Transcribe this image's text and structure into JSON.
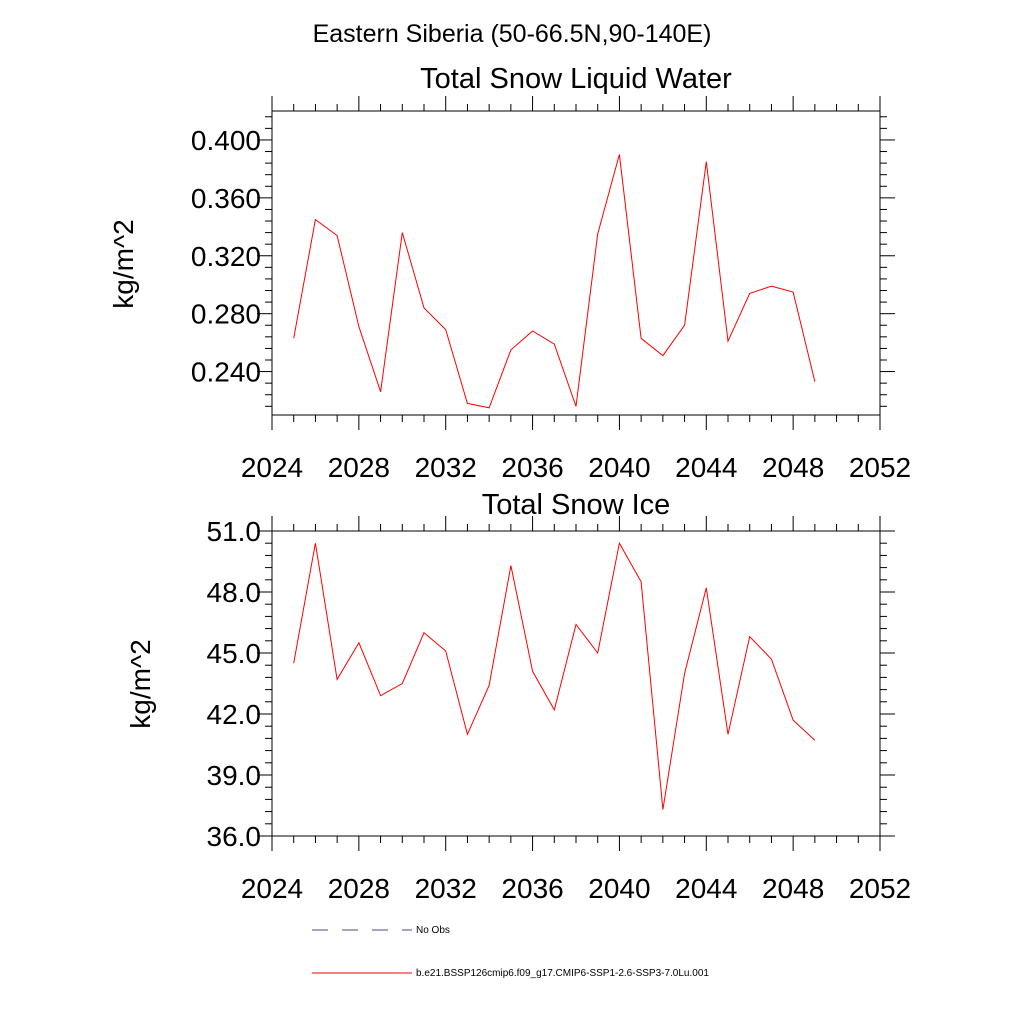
{
  "figure": {
    "suptitle": "Eastern Siberia (50-66.5N,90-140E)",
    "line_color": "#ff0000"
  },
  "chart_data": [
    {
      "type": "line",
      "title": "Total Snow Liquid Water",
      "xlabel": "",
      "ylabel": "kg/m^2",
      "xlim": [
        2024,
        2052
      ],
      "ylim": [
        0.21,
        0.42
      ],
      "x_ticks": [
        2024,
        2028,
        2032,
        2036,
        2040,
        2044,
        2048,
        2052
      ],
      "x_tick_labels": [
        "2024",
        "2028",
        "2032",
        "2036",
        "2040",
        "2044",
        "2048",
        "2052"
      ],
      "y_ticks": [
        0.24,
        0.28,
        0.32,
        0.36,
        0.4
      ],
      "y_tick_labels": [
        "0.240",
        "0.280",
        "0.320",
        "0.360",
        "0.400"
      ],
      "grid": false,
      "series": [
        {
          "name": "b.e21.BSSP126cmip6.f09_g17.CMIP6-SSP1-2.6-SSP3-7.0Lu.001",
          "color": "#ff0000",
          "x": [
            2025,
            2026,
            2027,
            2028,
            2029,
            2030,
            2031,
            2032,
            2033,
            2034,
            2035,
            2036,
            2037,
            2038,
            2039,
            2040,
            2041,
            2042,
            2043,
            2044,
            2045,
            2046,
            2047,
            2048,
            2049
          ],
          "y": [
            0.263,
            0.345,
            0.334,
            0.271,
            0.226,
            0.336,
            0.284,
            0.269,
            0.218,
            0.215,
            0.255,
            0.268,
            0.259,
            0.216,
            0.335,
            0.39,
            0.263,
            0.251,
            0.272,
            0.385,
            0.261,
            0.294,
            0.299,
            0.295,
            0.233
          ]
        }
      ]
    },
    {
      "type": "line",
      "title": "Total Snow Ice",
      "xlabel": "",
      "ylabel": "kg/m^2",
      "xlim": [
        2024,
        2052
      ],
      "ylim": [
        36.0,
        51.0
      ],
      "x_ticks": [
        2024,
        2028,
        2032,
        2036,
        2040,
        2044,
        2048,
        2052
      ],
      "x_tick_labels": [
        "2024",
        "2028",
        "2032",
        "2036",
        "2040",
        "2044",
        "2048",
        "2052"
      ],
      "y_ticks": [
        36,
        39,
        42,
        45,
        48,
        51
      ],
      "y_tick_labels": [
        "36.0",
        "39.0",
        "42.0",
        "45.0",
        "48.0",
        "51.0"
      ],
      "grid": false,
      "series": [
        {
          "name": "b.e21.BSSP126cmip6.f09_g17.CMIP6-SSP1-2.6-SSP3-7.0Lu.001",
          "color": "#ff0000",
          "x": [
            2025,
            2026,
            2027,
            2028,
            2029,
            2030,
            2031,
            2032,
            2033,
            2034,
            2035,
            2036,
            2037,
            2038,
            2039,
            2040,
            2041,
            2042,
            2043,
            2044,
            2045,
            2046,
            2047,
            2048,
            2049
          ],
          "y": [
            44.5,
            50.4,
            43.7,
            45.5,
            42.9,
            43.5,
            46.0,
            45.1,
            41.0,
            43.4,
            49.3,
            44.1,
            42.2,
            46.4,
            45.0,
            50.4,
            48.5,
            37.3,
            44.0,
            48.2,
            41.0,
            45.8,
            44.7,
            41.7,
            40.7
          ]
        }
      ]
    }
  ],
  "legend": {
    "placement": "bottom",
    "items": [
      {
        "label": "No Obs",
        "style": "dashed",
        "color": "#4a4a8a"
      },
      {
        "label": "b.e21.BSSP126cmip6.f09_g17.CMIP6-SSP1-2.6-SSP3-7.0Lu.001",
        "style": "solid",
        "color": "#ff0000"
      }
    ]
  }
}
